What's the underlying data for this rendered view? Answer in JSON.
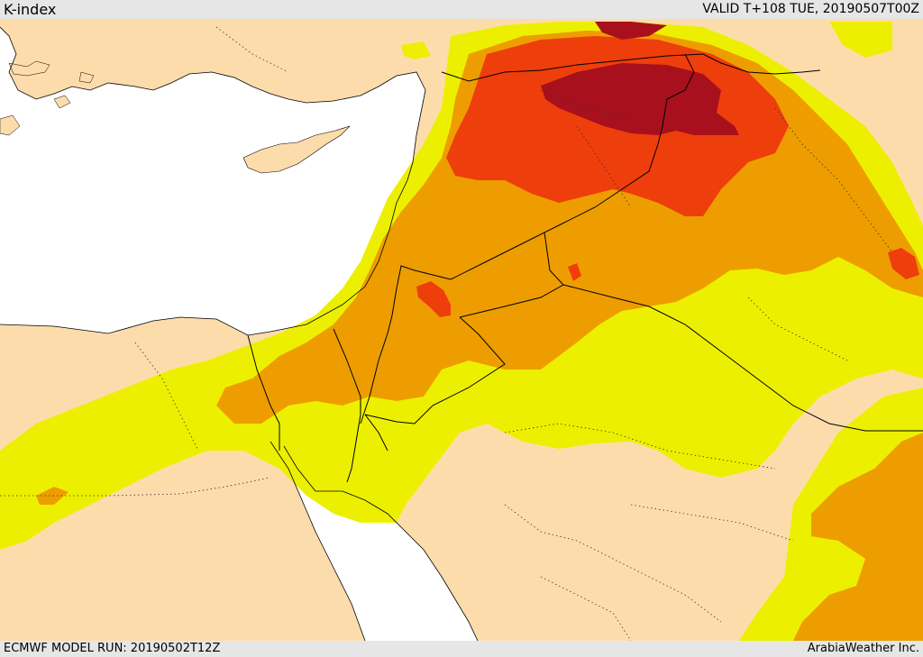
{
  "header": {
    "title": "K-index",
    "valid_time": "VALID T+108 TUE, 20190507T00Z"
  },
  "footer": {
    "model_run": "ECMWF MODEL RUN: 20190502T12Z",
    "credit": "ArabiaWeather Inc."
  },
  "colors": {
    "land": "#fddcac",
    "sea": "#ffffff",
    "yellow": "#ecf000",
    "orange": "#ee9d00",
    "red_orange": "#ee3e0c",
    "dark_red": "#a8101e",
    "borders": "#000000"
  }
}
